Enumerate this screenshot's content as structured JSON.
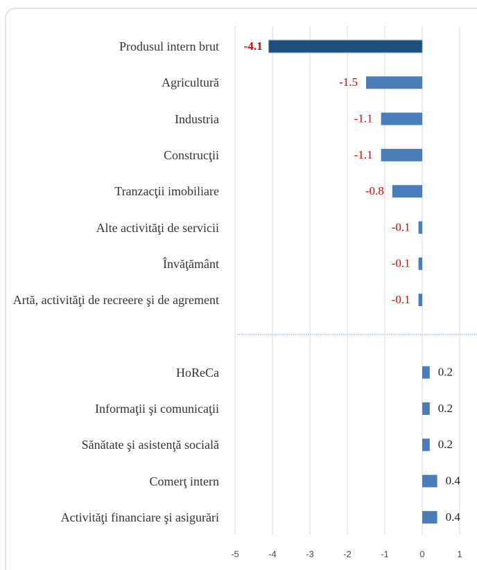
{
  "chart_data": {
    "type": "bar",
    "orientation": "horizontal",
    "categories": [
      "Produsul intern brut",
      "Agricultură",
      "Industria",
      "Construcţii",
      "Tranzacţii imobiliare",
      "Alte activităţi de servicii",
      "Învăţământ",
      "Artă, activităţi de recreere şi de agrement",
      null,
      "HoReCa",
      "Informaţii şi comunicaţii",
      "Sănătate şi asistenţă socială",
      "Comerţ intern",
      "Activităţi financiare şi asigurări"
    ],
    "values": [
      -4.1,
      -1.5,
      -1.1,
      -1.1,
      -0.8,
      -0.1,
      -0.1,
      -0.1,
      null,
      0.2,
      0.2,
      0.2,
      0.4,
      0.4
    ],
    "colors": [
      "#1f4e79",
      "#4a7ebb",
      "#4a7ebb",
      "#4a7ebb",
      "#4a7ebb",
      "#4a7ebb",
      "#4a7ebb",
      "#4a7ebb",
      null,
      "#4a7ebb",
      "#4a7ebb",
      "#4a7ebb",
      "#4a7ebb",
      "#4a7ebb"
    ],
    "xlim": [
      -5,
      1
    ],
    "xticks": [
      -5,
      -4,
      -3,
      -2,
      -1,
      0,
      1
    ],
    "grid": true
  }
}
